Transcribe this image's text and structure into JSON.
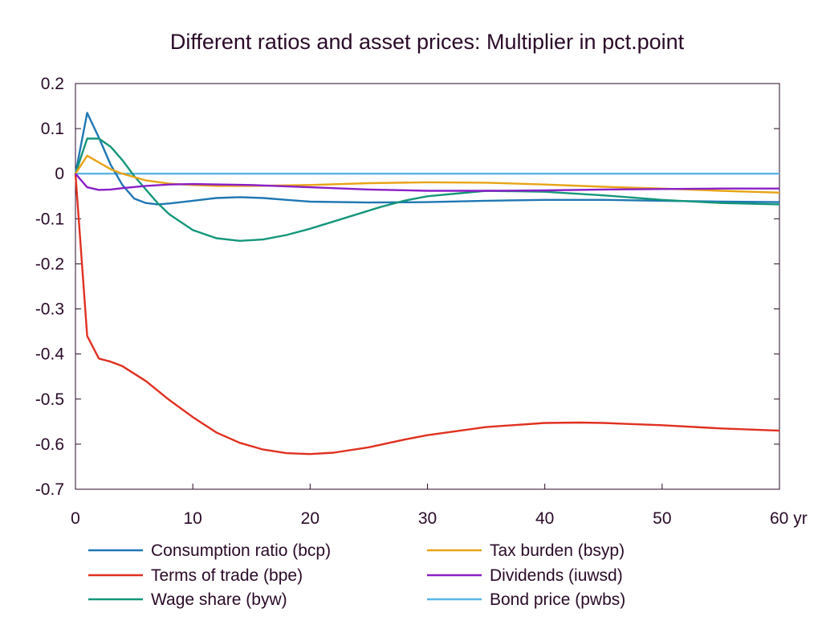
{
  "chart_data": {
    "type": "line",
    "title": "Different ratios and asset prices: Multiplier in pct.point",
    "xlabel": "",
    "ylabel": "",
    "xlim": [
      0,
      60
    ],
    "ylim": [
      -0.7,
      0.2
    ],
    "x_ticks": [
      0,
      10,
      20,
      30,
      40,
      50,
      60
    ],
    "x_tick_labels": [
      "0",
      "10",
      "20",
      "30",
      "40",
      "50",
      "60 yr"
    ],
    "y_ticks": [
      0.2,
      0.1,
      0,
      -0.1,
      -0.2,
      -0.3,
      -0.4,
      -0.5,
      -0.6,
      -0.7
    ],
    "y_tick_labels": [
      "0.2",
      "0.1",
      "0",
      "-0.1",
      "-0.2",
      "-0.3",
      "-0.4",
      "-0.5",
      "-0.6",
      "-0.7"
    ],
    "grid": false,
    "zero_line": true,
    "legend_position": "bottom",
    "series": [
      {
        "name": "Consumption ratio (bcp)",
        "color": "#1f77b4",
        "x": [
          0,
          1,
          2,
          3,
          4,
          5,
          6,
          7,
          8,
          10,
          12,
          14,
          16,
          18,
          20,
          25,
          30,
          35,
          40,
          45,
          50,
          55,
          60
        ],
        "y": [
          0,
          0.135,
          0.08,
          0.02,
          -0.025,
          -0.055,
          -0.065,
          -0.068,
          -0.066,
          -0.06,
          -0.054,
          -0.052,
          -0.054,
          -0.058,
          -0.062,
          -0.064,
          -0.063,
          -0.06,
          -0.058,
          -0.058,
          -0.06,
          -0.062,
          -0.063
        ]
      },
      {
        "name": "Terms of trade (bpe)",
        "color": "#e03020",
        "x": [
          0,
          1,
          2,
          3,
          4,
          6,
          8,
          10,
          12,
          14,
          16,
          18,
          20,
          22,
          25,
          28,
          30,
          35,
          40,
          43,
          45,
          50,
          55,
          60
        ],
        "y": [
          0,
          -0.36,
          -0.41,
          -0.417,
          -0.427,
          -0.46,
          -0.502,
          -0.54,
          -0.574,
          -0.597,
          -0.612,
          -0.62,
          -0.622,
          -0.619,
          -0.607,
          -0.59,
          -0.58,
          -0.562,
          -0.553,
          -0.552,
          -0.553,
          -0.558,
          -0.565,
          -0.57
        ]
      },
      {
        "name": "Wage share (byw)",
        "color": "#15967a",
        "x": [
          0,
          1,
          2,
          3,
          4,
          5,
          6,
          7,
          8,
          10,
          12,
          14,
          16,
          18,
          20,
          22,
          24,
          26,
          28,
          30,
          35,
          40,
          45,
          50,
          55,
          60
        ],
        "y": [
          0,
          0.078,
          0.078,
          0.06,
          0.03,
          -0.005,
          -0.035,
          -0.065,
          -0.09,
          -0.125,
          -0.143,
          -0.149,
          -0.146,
          -0.136,
          -0.122,
          -0.106,
          -0.09,
          -0.074,
          -0.06,
          -0.05,
          -0.038,
          -0.04,
          -0.048,
          -0.058,
          -0.065,
          -0.068
        ]
      },
      {
        "name": "Tax burden (bsyp)",
        "color": "#e8a317",
        "x": [
          0,
          1,
          2,
          3,
          4,
          6,
          8,
          10,
          12,
          15,
          20,
          25,
          30,
          35,
          40,
          45,
          50,
          55,
          60
        ],
        "y": [
          0,
          0.04,
          0.025,
          0.01,
          0,
          -0.015,
          -0.022,
          -0.025,
          -0.027,
          -0.027,
          -0.025,
          -0.021,
          -0.019,
          -0.02,
          -0.024,
          -0.029,
          -0.033,
          -0.038,
          -0.042
        ]
      },
      {
        "name": "Dividends (iuwsd)",
        "color": "#8a1ec8",
        "x": [
          0,
          1,
          2,
          3,
          4,
          6,
          8,
          10,
          15,
          20,
          25,
          30,
          35,
          40,
          45,
          50,
          55,
          60
        ],
        "y": [
          0,
          -0.03,
          -0.036,
          -0.035,
          -0.032,
          -0.027,
          -0.024,
          -0.023,
          -0.025,
          -0.03,
          -0.035,
          -0.038,
          -0.038,
          -0.037,
          -0.035,
          -0.034,
          -0.033,
          -0.033
        ]
      },
      {
        "name": "Bond price (pwbs)",
        "color": "#5ab4e6",
        "x": [
          0,
          60
        ],
        "y": [
          0,
          0
        ]
      }
    ]
  }
}
